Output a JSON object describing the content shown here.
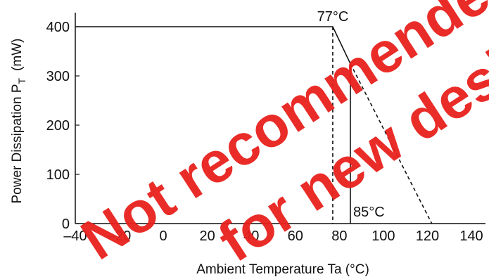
{
  "chart_data": {
    "type": "line",
    "title": "",
    "xlabel": "Ambient Temperature  Ta  (°C)",
    "ylabel_main": "Power Dissipation  P",
    "ylabel_sub": "T",
    "ylabel_unit": "(mW)",
    "xlim": [
      -40,
      140
    ],
    "ylim": [
      0,
      400
    ],
    "xticks": [
      -40,
      -20,
      0,
      20,
      40,
      60,
      80,
      100,
      120,
      140
    ],
    "xtick_labels": [
      "–40",
      "–20",
      "0",
      "20",
      "40",
      "60",
      "80",
      "100",
      "120",
      "140"
    ],
    "yticks": [
      0,
      100,
      200,
      300,
      400
    ],
    "ytick_labels": [
      "0",
      "100",
      "200",
      "300",
      "400"
    ],
    "grid": false,
    "series": [
      {
        "style": "solid",
        "x": [
          -40,
          77,
          85,
          85
        ],
        "y": [
          400,
          400,
          325,
          0
        ]
      },
      {
        "style": "dashed",
        "x": [
          85,
          122
        ],
        "y": [
          325,
          0
        ]
      },
      {
        "style": "dashed",
        "x": [
          77,
          77
        ],
        "y": [
          400,
          0
        ]
      }
    ],
    "annotations": [
      {
        "text": "77°C",
        "x": 77,
        "y": 400
      },
      {
        "text": "85°C",
        "x": 85,
        "y": 0
      }
    ]
  },
  "watermark": {
    "lines": [
      "Not recommended",
      "for new design"
    ],
    "color": "#e8211d"
  }
}
